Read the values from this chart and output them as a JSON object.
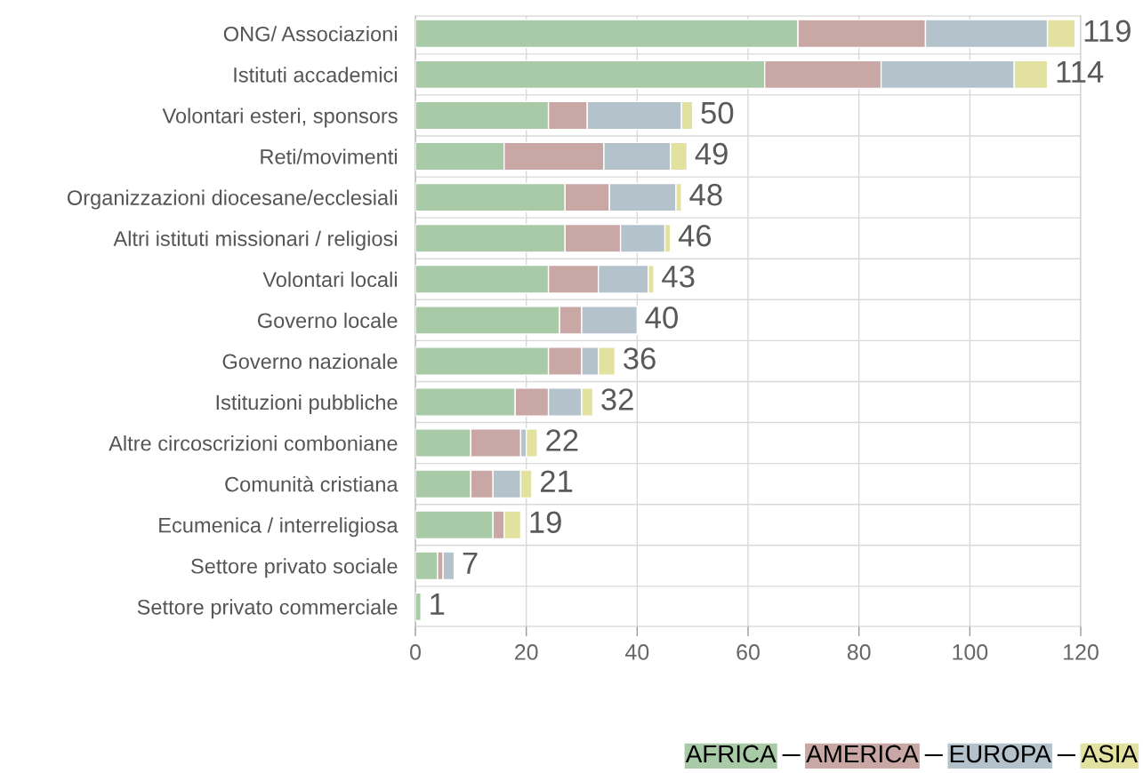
{
  "chart_data": {
    "type": "bar",
    "orientation": "horizontal",
    "stacked": true,
    "categories": [
      "ONG/ Associazioni",
      "Istituti accademici",
      "Volontari esteri, sponsors",
      "Reti/movimenti",
      "Organizzazioni diocesane/ecclesiali",
      "Altri istituti missionari / religiosi",
      "Volontari locali",
      "Governo locale",
      "Governo nazionale",
      "Istituzioni pubbliche",
      "Altre circoscrizioni comboniane",
      "Comunità cristiana",
      "Ecumenica / interreligiosa",
      "Settore privato sociale",
      "Settore privato commerciale"
    ],
    "series": [
      {
        "name": "AFRICA",
        "color": "#a9caa7",
        "values": [
          69,
          63,
          24,
          16,
          27,
          27,
          24,
          26,
          24,
          18,
          10,
          10,
          14,
          4,
          1
        ]
      },
      {
        "name": "AMERICA",
        "color": "#c8a7a5",
        "values": [
          23,
          21,
          7,
          18,
          8,
          10,
          9,
          4,
          6,
          6,
          9,
          4,
          2,
          1,
          0
        ]
      },
      {
        "name": "EUROPA",
        "color": "#b4c2cc",
        "values": [
          22,
          24,
          17,
          12,
          12,
          8,
          9,
          10,
          3,
          6,
          1,
          5,
          0,
          2,
          0
        ]
      },
      {
        "name": "ASIA",
        "color": "#e2e1a0",
        "values": [
          5,
          6,
          2,
          3,
          1,
          1,
          1,
          0,
          3,
          2,
          2,
          2,
          3,
          0,
          0
        ]
      }
    ],
    "totals": [
      "119",
      "114",
      "50",
      "49",
      "48",
      "46",
      "43",
      "40",
      "36",
      "32",
      "22",
      "21",
      "19",
      "7",
      "1"
    ],
    "xlim": [
      0,
      120
    ],
    "xticks": [
      0,
      20,
      40,
      60,
      80,
      100,
      120
    ],
    "grid": true,
    "legend": "bottom right"
  }
}
